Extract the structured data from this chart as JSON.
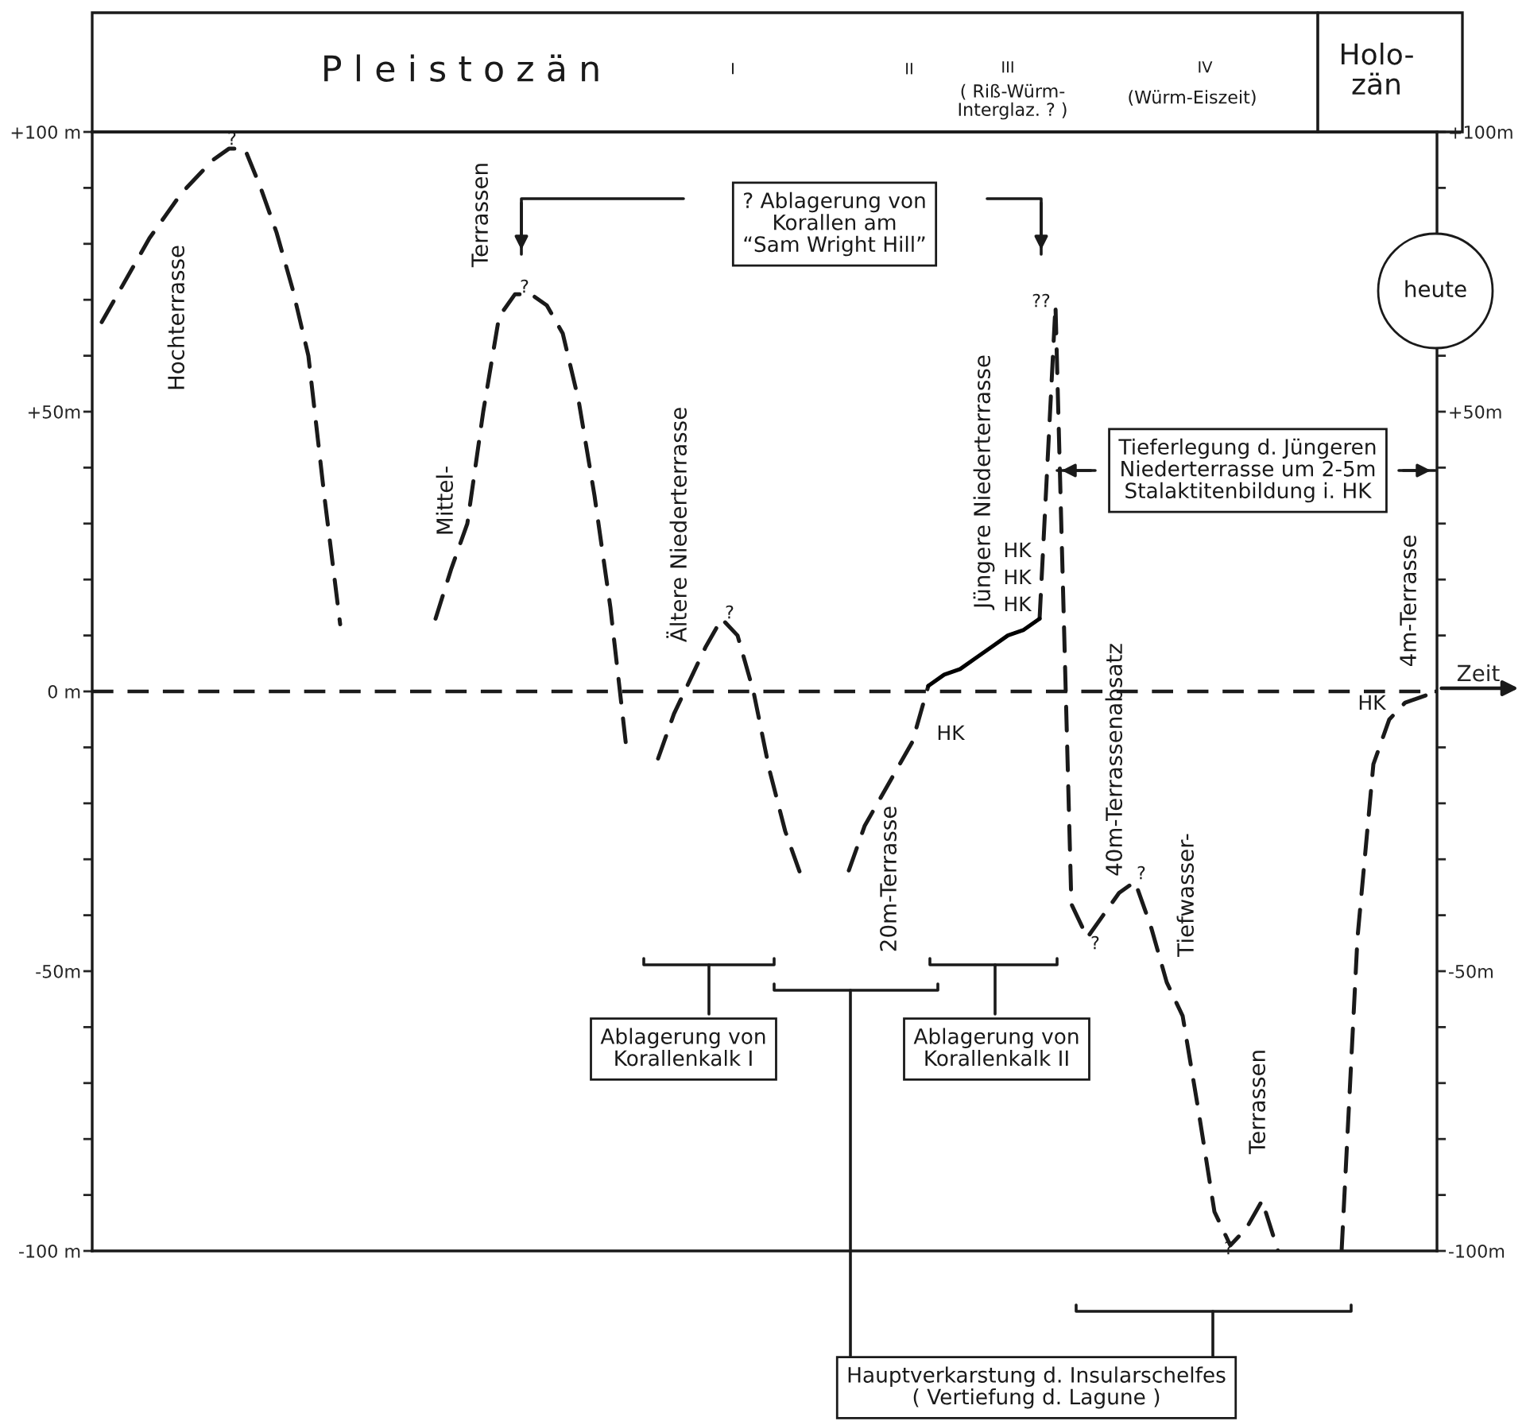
{
  "chart_data": {
    "type": "line",
    "xlabel": "Zeit",
    "categories": [
      null,
      null,
      null,
      null,
      null,
      null,
      null,
      null,
      null,
      null,
      null,
      null,
      null,
      null,
      null,
      null,
      null,
      null,
      null,
      null,
      null,
      null,
      null,
      null,
      null,
      null,
      null,
      null,
      null,
      null,
      null,
      null,
      null,
      null,
      null,
      null,
      null,
      null,
      null,
      null,
      null,
      null,
      null,
      null,
      null,
      null,
      null,
      null,
      null,
      null,
      null,
      null,
      null,
      null,
      null,
      null,
      null,
      null,
      null,
      null,
      null,
      null,
      null,
      null,
      null,
      null,
      null,
      null,
      null,
      null,
      null,
      null,
      null,
      null,
      null,
      null,
      null,
      null,
      null,
      null,
      null,
      null,
      null,
      null,
      null
    ],
    "series": [
      {
        "color": "#1a1a1a",
        "line_style": "dashed",
        "values": [
          66,
          71,
          76,
          81,
          85,
          89,
          92,
          95,
          97,
          97,
          90,
          82,
          72,
          60,
          35,
          12,
          null,
          null,
          null,
          null,
          null,
          13,
          22,
          30,
          50,
          67,
          71,
          71,
          69,
          64,
          52,
          35,
          15,
          -10,
          null,
          -12,
          -4,
          2,
          8,
          13,
          10,
          0,
          -14,
          -25,
          -33,
          null,
          null,
          -32,
          -24,
          -19,
          -14,
          -9,
          1,
          null,
          null,
          null,
          null,
          null,
          null,
          13,
          69,
          -38,
          -44,
          -40,
          -36,
          -34,
          -42,
          -52,
          -58,
          -75,
          -93,
          -99,
          -96,
          -91,
          -100,
          null,
          null,
          null,
          -100,
          -44,
          -13,
          -5,
          -2,
          -1,
          0
        ]
      },
      {
        "color": "#000000",
        "line_style": "solid",
        "values": [
          null,
          null,
          null,
          null,
          null,
          null,
          null,
          null,
          null,
          null,
          null,
          null,
          null,
          null,
          null,
          null,
          null,
          null,
          null,
          null,
          null,
          null,
          null,
          null,
          null,
          null,
          null,
          null,
          null,
          null,
          null,
          null,
          null,
          null,
          null,
          null,
          null,
          null,
          null,
          null,
          null,
          null,
          null,
          null,
          null,
          null,
          null,
          null,
          null,
          null,
          null,
          null,
          1,
          3,
          4,
          6,
          8,
          10,
          11,
          13,
          null,
          null,
          null,
          null,
          null,
          null,
          null,
          null,
          null,
          null,
          null,
          null,
          null,
          null,
          null,
          null,
          null,
          null,
          null,
          null,
          null,
          null,
          null,
          null,
          null
        ]
      }
    ],
    "ylim": [
      -100,
      100
    ],
    "yticks": [
      {
        "value": 100,
        "label": "+100 m"
      },
      {
        "value": 90,
        "label": null
      },
      {
        "value": 80,
        "label": null
      },
      {
        "value": 70,
        "label": null
      },
      {
        "value": 60,
        "label": null
      },
      {
        "value": 50,
        "label": "+50m"
      },
      {
        "value": 40,
        "label": null
      },
      {
        "value": 30,
        "label": null
      },
      {
        "value": 20,
        "label": null
      },
      {
        "value": 10,
        "label": null
      },
      {
        "value": 0,
        "label": "0 m"
      },
      {
        "value": -10,
        "label": null
      },
      {
        "value": -20,
        "label": null
      },
      {
        "value": -30,
        "label": null
      },
      {
        "value": -40,
        "label": null
      },
      {
        "value": -50,
        "label": "-50m"
      },
      {
        "value": -60,
        "label": null
      },
      {
        "value": -70,
        "label": null
      },
      {
        "value": -80,
        "label": null
      },
      {
        "value": -90,
        "label": null
      },
      {
        "value": -100,
        "label": "-100 m"
      }
    ],
    "y2lim": [
      -100,
      100
    ],
    "y2ticks": [
      {
        "value": 100,
        "label": "+100m"
      },
      {
        "value": 90,
        "label": null
      },
      {
        "value": 80,
        "label": null
      },
      {
        "value": 70,
        "label": null
      },
      {
        "value": 60,
        "label": null
      },
      {
        "value": 50,
        "label": "+50m"
      },
      {
        "value": 40,
        "label": null
      },
      {
        "value": 30,
        "label": null
      },
      {
        "value": 20,
        "label": null
      },
      {
        "value": 10,
        "label": null
      },
      {
        "value": -10,
        "label": null
      },
      {
        "value": -20,
        "label": null
      },
      {
        "value": -30,
        "label": null
      },
      {
        "value": -40,
        "label": null
      },
      {
        "value": -50,
        "label": "-50m"
      },
      {
        "value": -60,
        "label": null
      },
      {
        "value": -70,
        "label": null
      },
      {
        "value": -80,
        "label": null
      },
      {
        "value": -90,
        "label": null
      },
      {
        "value": -100,
        "label": "-100m"
      }
    ],
    "tick_labels": "y",
    "ref_lines": [
      {
        "axis": "y",
        "value": 0,
        "color": "#1a1a1a",
        "line_style": "dashed"
      }
    ],
    "annotations": [
      "P l e i s t o z ä n",
      "Holo-\nzän",
      "I",
      "II",
      "III",
      "IV",
      "( Riß-Würm-\nInterglaz. ? )",
      "(Würm-Eiszeit)",
      "Hochterrasse",
      "Mittel-",
      "Terrassen",
      "Ältere Niederterrasse",
      "Jüngere Niederterrasse",
      "HK",
      "HK",
      "HK",
      "HK",
      "20m-Terrasse",
      "40m-Terrassenabsatz",
      "Tiefwasser-",
      "Terrassen",
      "4m-Terrasse",
      "HK",
      "heute",
      "?",
      "?",
      "?",
      "??",
      "?",
      "?",
      "?",
      "? Ablagerung von\nKorallen am\n“Sam Wright Hill”",
      "Tieferlegung d. Jüngeren\nNiederterrasse um 2-5m\nStalaktitenbildung i. HK",
      "Ablagerung von\nKorallenkalk I",
      "Ablagerung von\nKorallenkalk II",
      "Hauptverkarstung d. Insularschelfes\n( Vertiefung d. Lagune )"
    ]
  }
}
